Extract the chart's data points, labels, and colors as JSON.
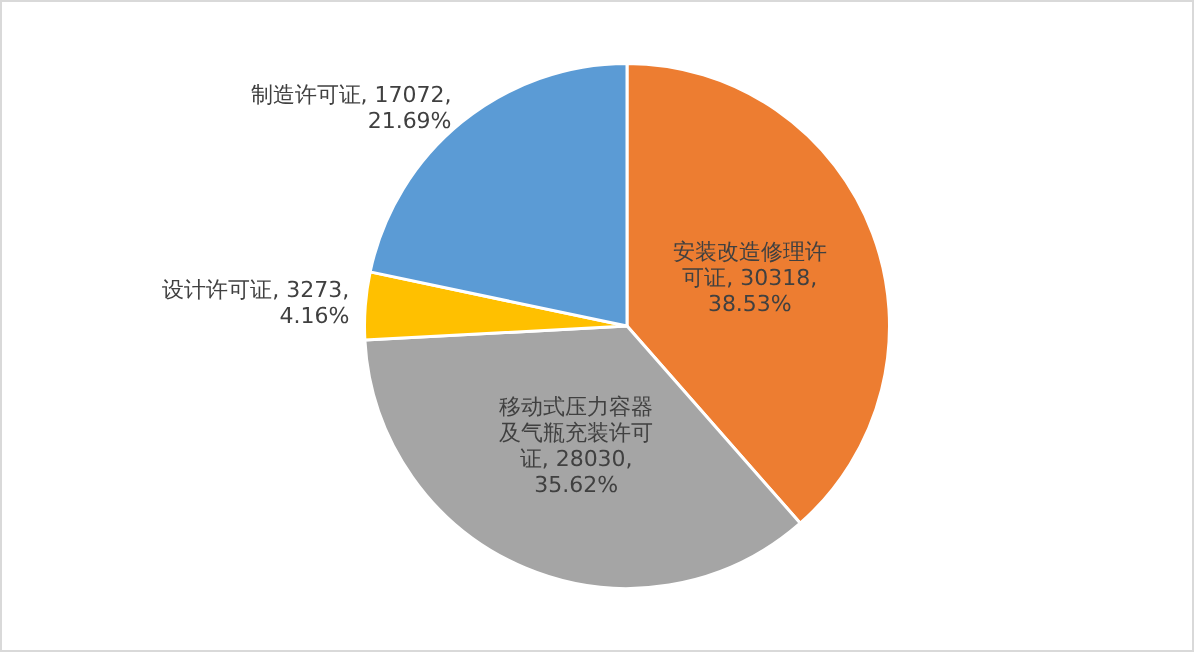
{
  "chart_data": {
    "type": "pie",
    "categories": [
      "安装改造修理许可证",
      "移动式压力容器及气瓶充装许可证",
      "设计许可证",
      "制造许可证"
    ],
    "values": [
      30318,
      28030,
      3273,
      17072
    ],
    "colors": [
      "#ed7d31",
      "#a5a5a5",
      "#ffc000",
      "#5b9bd5"
    ],
    "value_labels": [
      "30318, 38.53%",
      "28030, 35.62%",
      "3273, 4.16%",
      "17072, 21.69%"
    ],
    "legend": false
  }
}
